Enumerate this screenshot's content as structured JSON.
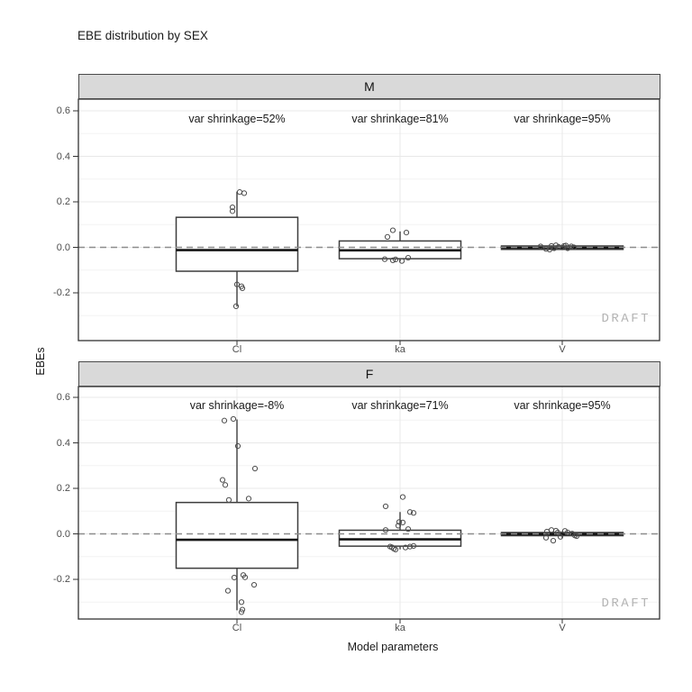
{
  "chart_data": {
    "type": "boxplot",
    "title": "EBE distribution by SEX",
    "xlabel": "Model parameters",
    "ylabel": "EBEs",
    "watermark": "DRAFT",
    "categories": [
      "Cl",
      "ka",
      "V"
    ],
    "y_ticks": [
      {
        "v": 0.6,
        "label": "0.6"
      },
      {
        "v": 0.4,
        "label": "0.4"
      },
      {
        "v": 0.2,
        "label": "0.2"
      },
      {
        "v": 0.0,
        "label": "0.0"
      },
      {
        "v": -0.2,
        "label": "-0.2"
      }
    ],
    "y_minor_breaks": [
      0.5,
      0.3,
      0.1,
      -0.1,
      -0.3
    ],
    "ylim": [
      -0.4,
      0.65
    ],
    "reference_line": 0,
    "grid": true,
    "legend_position": "none",
    "colors": {
      "strip_fill": "#d9d9d9",
      "panel_border": "#333333",
      "grid_major": "#e8e8e8",
      "grid_minor": "#f4f4f4",
      "box_stroke": "#3d3d3d",
      "median_stroke": "#141414",
      "point_stroke": "#4d4d4d",
      "reference_line": "#8c8c8c",
      "watermark": "#b4b4b4",
      "tick_label": "#4d4d4d",
      "tick_mark": "#333333"
    },
    "facets": [
      {
        "label": "M",
        "annotations": [
          "var shrinkage=52%",
          "var shrinkage=81%",
          "var shrinkage=95%"
        ],
        "boxes": [
          {
            "category": "Cl",
            "min": -0.26,
            "q1": -0.105,
            "median": -0.012,
            "q3": 0.132,
            "max": 0.245
          },
          {
            "category": "ka",
            "min": -0.062,
            "q1": -0.05,
            "median": -0.013,
            "q3": 0.028,
            "max": 0.07
          },
          {
            "category": "V",
            "min": -0.012,
            "q1": -0.009,
            "median": -0.002,
            "q3": 0.006,
            "max": 0.01
          }
        ],
        "points": {
          "Cl": [
            [
              3,
              0.243
            ],
            [
              8,
              0.238
            ],
            [
              -5,
              0.176
            ],
            [
              -5,
              0.159
            ],
            [
              0,
              -0.163
            ],
            [
              5,
              -0.171
            ],
            [
              6,
              -0.18
            ],
            [
              -1,
              -0.259
            ]
          ],
          "ka": [
            [
              -8,
              0.075
            ],
            [
              7,
              0.065
            ],
            [
              -14,
              0.046
            ],
            [
              -17,
              -0.052
            ],
            [
              -8,
              -0.057
            ],
            [
              -5,
              -0.053
            ],
            [
              9,
              -0.046
            ],
            [
              2,
              -0.06
            ]
          ],
          "V": [
            [
              -24,
              0.004
            ],
            [
              -18,
              -0.007
            ],
            [
              -12,
              0.006
            ],
            [
              -9,
              -0.004
            ],
            [
              -4,
              0.002
            ],
            [
              2,
              0.006
            ],
            [
              6,
              -0.004
            ],
            [
              10,
              0.004
            ],
            [
              13,
              0.0
            ],
            [
              -14,
              -0.01
            ],
            [
              4,
              0.008
            ],
            [
              -7,
              0.009
            ]
          ]
        }
      },
      {
        "label": "F",
        "annotations": [
          "var shrinkage=-8%",
          "var shrinkage=71%",
          "var shrinkage=95%"
        ],
        "boxes": [
          {
            "category": "Cl",
            "min": -0.336,
            "q1": -0.151,
            "median": -0.026,
            "q3": 0.138,
            "max": 0.503
          },
          {
            "category": "ka",
            "min": -0.068,
            "q1": -0.054,
            "median": -0.024,
            "q3": 0.016,
            "max": 0.096
          },
          {
            "category": "V",
            "min": -0.018,
            "q1": -0.008,
            "median": -0.001,
            "q3": 0.006,
            "max": 0.012
          }
        ],
        "points": {
          "Cl": [
            [
              -14,
              0.498
            ],
            [
              -4,
              0.505
            ],
            [
              1,
              0.386
            ],
            [
              20,
              0.287
            ],
            [
              -16,
              0.237
            ],
            [
              -13,
              0.215
            ],
            [
              -9,
              0.149
            ],
            [
              13,
              0.155
            ],
            [
              -3,
              -0.192
            ],
            [
              7,
              -0.181
            ],
            [
              9,
              -0.191
            ],
            [
              19,
              -0.224
            ],
            [
              -10,
              -0.25
            ],
            [
              5,
              -0.3
            ],
            [
              6,
              -0.333
            ],
            [
              5,
              -0.344
            ]
          ],
          "ka": [
            [
              3,
              0.162
            ],
            [
              -16,
              0.121
            ],
            [
              11,
              0.096
            ],
            [
              15,
              0.092
            ],
            [
              -1,
              0.052
            ],
            [
              3,
              0.05
            ],
            [
              -2,
              0.036
            ],
            [
              -16,
              0.017
            ],
            [
              9,
              0.021
            ],
            [
              -11,
              -0.056
            ],
            [
              -7,
              -0.065
            ],
            [
              -5,
              -0.069
            ],
            [
              6,
              -0.06
            ],
            [
              11,
              -0.056
            ],
            [
              15,
              -0.053
            ],
            [
              -9,
              -0.059
            ]
          ],
          "V": [
            [
              -17,
              0.01
            ],
            [
              -12,
              0.017
            ],
            [
              -7,
              0.014
            ],
            [
              -5,
              0.006
            ],
            [
              3,
              0.013
            ],
            [
              6,
              0.006
            ],
            [
              11,
              0.001
            ],
            [
              14,
              -0.007
            ],
            [
              -18,
              -0.017
            ],
            [
              -10,
              -0.03
            ],
            [
              -2,
              -0.013
            ],
            [
              16,
              -0.01
            ]
          ]
        }
      }
    ]
  }
}
